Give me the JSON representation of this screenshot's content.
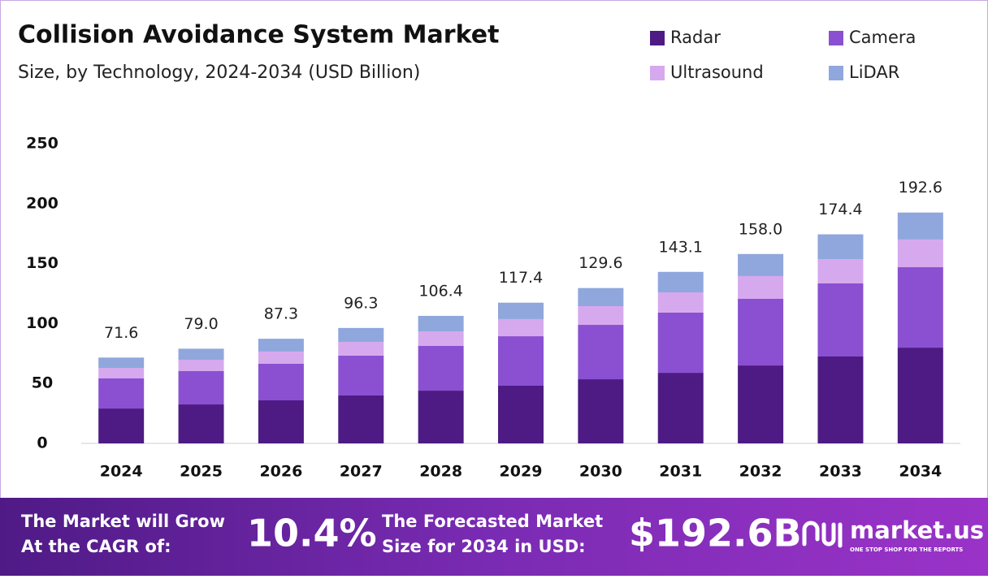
{
  "chart_data": {
    "type": "stacked-bar",
    "title": "Collision Avoidance System Market",
    "subtitle": "Size, by Technology, 2024-2034 (USD Billion)",
    "categories": [
      "2024",
      "2025",
      "2026",
      "2027",
      "2028",
      "2029",
      "2030",
      "2031",
      "2032",
      "2033",
      "2034"
    ],
    "series": [
      {
        "name": "Radar",
        "color": "#4e1a84",
        "values": [
          29.1,
          32.5,
          35.9,
          40.0,
          44.0,
          48.1,
          53.5,
          58.9,
          65.0,
          72.5,
          79.9
        ]
      },
      {
        "name": "Camera",
        "color": "#8a50d1",
        "values": [
          25.1,
          27.8,
          30.5,
          33.2,
          37.3,
          41.3,
          45.4,
          50.2,
          55.6,
          61.0,
          67.1
        ]
      },
      {
        "name": "Ultrasound",
        "color": "#d6a9ee",
        "values": [
          8.8,
          9.5,
          10.2,
          11.5,
          12.2,
          14.3,
          15.6,
          16.9,
          19.0,
          20.3,
          23.1
        ]
      },
      {
        "name": "LiDAR",
        "color": "#8fa7dc",
        "values": [
          8.6,
          9.2,
          10.7,
          11.6,
          12.9,
          13.7,
          15.1,
          17.1,
          18.4,
          20.6,
          22.5
        ]
      }
    ],
    "totals": {
      "values": [
        71.6,
        79.0,
        87.3,
        96.3,
        106.4,
        117.4,
        129.6,
        143.1,
        158.0,
        174.4,
        192.6
      ],
      "value_labels": [
        "71.6",
        "79.0",
        "87.3",
        "96.3",
        "106.4",
        "117.4",
        "129.6",
        "143.1",
        "158.0",
        "174.4",
        "192.6"
      ]
    },
    "ylim": [
      0,
      250
    ],
    "yticks": [
      0,
      50,
      100,
      150,
      200,
      250
    ],
    "grid": false
  },
  "footer": {
    "cagr_text_1": "The Market will Grow",
    "cagr_text_2": "At the CAGR of:",
    "cagr": "10.4%",
    "forecast_text_1": "The Forecasted Market",
    "forecast_text_2": "Size for 2034 in USD:",
    "forecast": "$192.6B",
    "brand": "market.us",
    "tagline": "ONE STOP SHOP FOR THE REPORTS"
  }
}
